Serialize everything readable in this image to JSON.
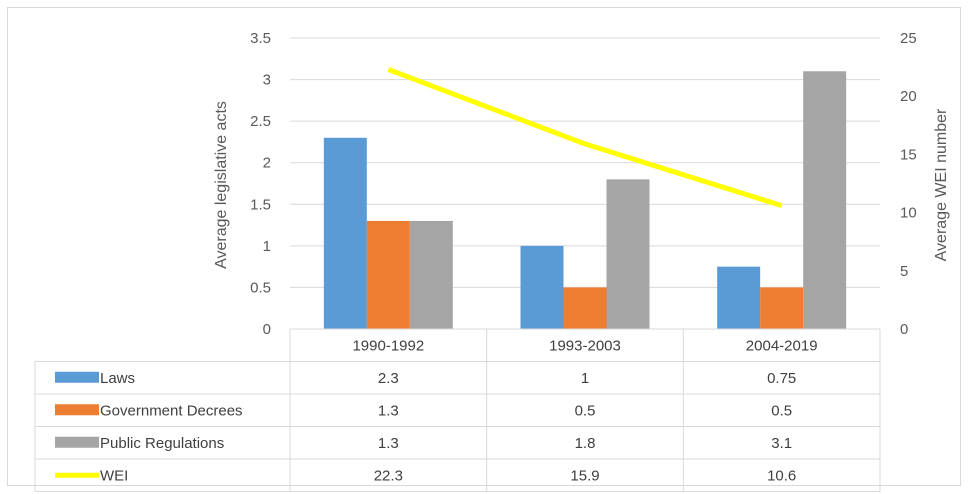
{
  "chart_data": {
    "type": "bar",
    "title": "",
    "categories": [
      "1990-1992",
      "1993-2003",
      "2004-2019"
    ],
    "series": [
      {
        "name": "Laws",
        "type": "bar",
        "axis": "left",
        "color": "#5b9bd5",
        "values": [
          2.3,
          1,
          0.75
        ]
      },
      {
        "name": "Government Decrees",
        "type": "bar",
        "axis": "left",
        "color": "#ed7d31",
        "values": [
          1.3,
          0.5,
          0.5
        ]
      },
      {
        "name": "Public Regulations",
        "type": "bar",
        "axis": "left",
        "color": "#a5a5a5",
        "values": [
          1.3,
          1.8,
          3.1
        ]
      },
      {
        "name": "WEI",
        "type": "line",
        "axis": "right",
        "color": "#ffff00",
        "values": [
          22.3,
          15.9,
          10.6
        ]
      }
    ],
    "table_values": [
      [
        "2.3",
        "1",
        "0.75"
      ],
      [
        "1.3",
        "0.5",
        "0.5"
      ],
      [
        "1.3",
        "1.8",
        "3.1"
      ],
      [
        "22.3",
        "15.9",
        "10.6"
      ]
    ],
    "ylabel": "Average legislative acts",
    "y2label": "Average WEI number",
    "ylim": [
      0,
      3.5
    ],
    "y_ticks": [
      "0",
      "0.5",
      "1",
      "1.5",
      "2",
      "2.5",
      "3",
      "3.5"
    ],
    "y2lim": [
      0,
      25
    ],
    "y2_ticks": [
      "0",
      "5",
      "10",
      "15",
      "20",
      "25"
    ],
    "grid": true,
    "legend": "data table"
  }
}
